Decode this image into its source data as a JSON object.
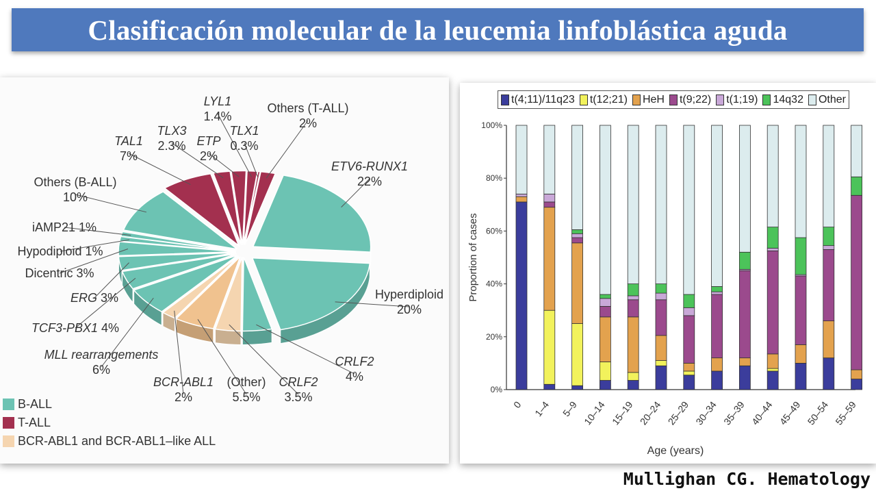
{
  "header": {
    "title": "Clasificación molecular de la leucemia linfoblástica aguda"
  },
  "credit": "Mullighan CG. Hematology",
  "colors": {
    "b_all": "#6cc3b3",
    "t_all": "#a3304f",
    "bcr_abl1_like": "#f0c28f",
    "title_bg": "#4f79bd"
  },
  "chart_data": [
    {
      "type": "pie",
      "legend": [
        {
          "name": "B-ALL",
          "color": "#6cc3b3"
        },
        {
          "name": "T-ALL",
          "color": "#a3304f"
        },
        {
          "name": "BCR-ABL1 and BCR-ABL1–like ALL",
          "color": "#f5d5b0"
        }
      ],
      "slices": [
        {
          "name": "ETV6-RUNX1",
          "value": 22,
          "label": "22%",
          "group": "B-ALL"
        },
        {
          "name": "Hyperdiploid",
          "value": 20,
          "label": "20%",
          "group": "B-ALL"
        },
        {
          "name": "CRLF2",
          "value": 4,
          "label": "4%",
          "group": "B-ALL"
        },
        {
          "name": "CRLF2",
          "value": 3.5,
          "label": "3.5%",
          "group": "BCR-ABL1 and BCR-ABL1–like ALL"
        },
        {
          "name": "(Other)",
          "value": 5.5,
          "label": "5.5%",
          "group": "BCR-ABL1 and BCR-ABL1–like ALL"
        },
        {
          "name": "BCR-ABL1",
          "value": 2,
          "label": "2%",
          "group": "BCR-ABL1 and BCR-ABL1–like ALL"
        },
        {
          "name": "MLL rearrangements",
          "value": 6,
          "label": "6%",
          "group": "B-ALL"
        },
        {
          "name": "TCF3-PBX1",
          "value": 4,
          "label": "4%",
          "group": "B-ALL"
        },
        {
          "name": "ERG",
          "value": 3,
          "label": "3%",
          "group": "B-ALL"
        },
        {
          "name": "Dicentric",
          "value": 3,
          "label": "3%",
          "group": "B-ALL"
        },
        {
          "name": "Hypodiploid",
          "value": 1,
          "label": "1%",
          "group": "B-ALL"
        },
        {
          "name": "iAMP21",
          "value": 1,
          "label": "1%",
          "group": "B-ALL"
        },
        {
          "name": "Others (B-ALL)",
          "value": 10,
          "label": "10%",
          "group": "B-ALL"
        },
        {
          "name": "TAL1",
          "value": 7,
          "label": "7%",
          "group": "T-ALL"
        },
        {
          "name": "TLX3",
          "value": 2.3,
          "label": "2.3%",
          "group": "T-ALL"
        },
        {
          "name": "ETP",
          "value": 2,
          "label": "2%",
          "group": "T-ALL"
        },
        {
          "name": "LYL1",
          "value": 1.4,
          "label": "1.4%",
          "group": "T-ALL"
        },
        {
          "name": "TLX1",
          "value": 0.3,
          "label": "0.3%",
          "group": "T-ALL"
        },
        {
          "name": "Others (T-ALL)",
          "value": 2,
          "label": "2%",
          "group": "T-ALL"
        }
      ]
    },
    {
      "type": "bar",
      "stacked": true,
      "xlabel": "Age (years)",
      "ylabel": "Proportion of cases",
      "ylim": [
        0,
        100
      ],
      "yticks": [
        "0%",
        "20%",
        "40%",
        "60%",
        "80%",
        "100%"
      ],
      "legend_position": "top",
      "categories": [
        "0",
        "1–4",
        "5–9",
        "10–14",
        "15–19",
        "20–24",
        "25–29",
        "30–34",
        "35–39",
        "40–44",
        "45–49",
        "50–54",
        "55–59"
      ],
      "series": [
        {
          "name": "t(4;11)/11q23",
          "color": "#3b3d9c",
          "values": [
            71,
            2,
            1.5,
            3.5,
            3.5,
            9,
            5.5,
            7,
            9,
            7,
            10,
            12,
            4
          ]
        },
        {
          "name": "t(12;21)",
          "color": "#f2f25c",
          "values": [
            0,
            28,
            23.5,
            7,
            3,
            2,
            1.5,
            0,
            0,
            1,
            0,
            0,
            0
          ]
        },
        {
          "name": "HeH",
          "color": "#e3a24e",
          "values": [
            2,
            39,
            30.5,
            17,
            21,
            9.5,
            3,
            5,
            3,
            5.5,
            7,
            14,
            3.5
          ]
        },
        {
          "name": "t(9;22)",
          "color": "#9b4a8d",
          "values": [
            0,
            2,
            2,
            4,
            6.5,
            13.5,
            18,
            24,
            33,
            39,
            26,
            27,
            66
          ]
        },
        {
          "name": "t(1;19)",
          "color": "#c9a8d8",
          "values": [
            1,
            3,
            1.5,
            3,
            1.5,
            2.5,
            3,
            1,
            0.5,
            1,
            0.5,
            1.5,
            0
          ]
        },
        {
          "name": "14q32",
          "color": "#4cc35a",
          "values": [
            0,
            0,
            1.5,
            1.5,
            4.5,
            3.5,
            5,
            2,
            6.5,
            8,
            14,
            7,
            7
          ]
        },
        {
          "name": "Other",
          "color": "#dcecee",
          "values": [
            26,
            26,
            39.5,
            64,
            60,
            60,
            64,
            61,
            48,
            38.5,
            42.5,
            38.5,
            19.5
          ]
        }
      ]
    }
  ]
}
